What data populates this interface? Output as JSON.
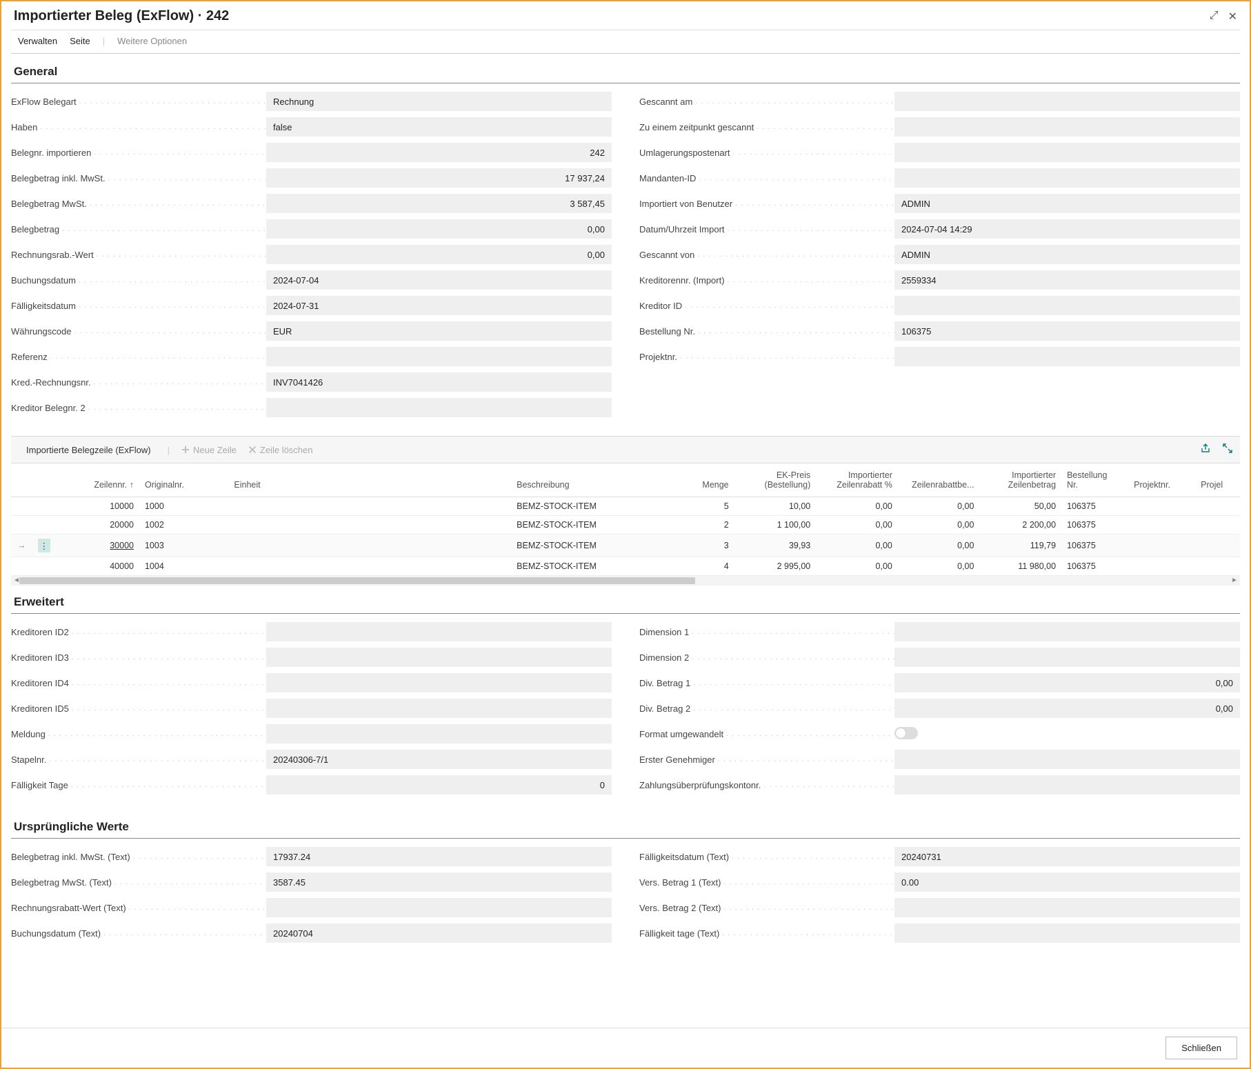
{
  "header": {
    "title": "Importierter Beleg (ExFlow) · 242"
  },
  "tabs": {
    "manage": "Verwalten",
    "page": "Seite",
    "more": "Weitere Optionen"
  },
  "sections": {
    "general": "General",
    "erweitert": "Erweitert",
    "urspruenglich": "Ursprüngliche Werte"
  },
  "general": {
    "left": [
      {
        "label": "ExFlow Belegart",
        "value": "Rechnung",
        "align": "left"
      },
      {
        "label": "Haben",
        "value": "false",
        "align": "left"
      },
      {
        "label": "Belegnr. importieren",
        "value": "242",
        "align": "right"
      },
      {
        "label": "Belegbetrag inkl. MwSt.",
        "value": "17 937,24",
        "align": "right"
      },
      {
        "label": "Belegbetrag MwSt.",
        "value": "3 587,45",
        "align": "right"
      },
      {
        "label": "Belegbetrag",
        "value": "0,00",
        "align": "right"
      },
      {
        "label": "Rechnungsrab.-Wert",
        "value": "0,00",
        "align": "right"
      },
      {
        "label": "Buchungsdatum",
        "value": "2024-07-04",
        "align": "left"
      },
      {
        "label": "Fälligkeitsdatum",
        "value": "2024-07-31",
        "align": "left"
      },
      {
        "label": "Währungscode",
        "value": "EUR",
        "align": "left"
      },
      {
        "label": "Referenz",
        "value": "",
        "align": "left"
      },
      {
        "label": "Kred.-Rechnungsnr.",
        "value": "INV7041426",
        "align": "left"
      },
      {
        "label": "Kreditor Belegnr. 2",
        "value": "",
        "align": "left"
      }
    ],
    "right": [
      {
        "label": "Gescannt am",
        "value": "",
        "align": "left"
      },
      {
        "label": "Zu einem zeitpunkt gescannt",
        "value": "",
        "align": "left"
      },
      {
        "label": "Umlagerungspostenart",
        "value": "",
        "align": "left"
      },
      {
        "label": "Mandanten-ID",
        "value": "",
        "align": "left"
      },
      {
        "label": "Importiert von Benutzer",
        "value": "ADMIN",
        "align": "left"
      },
      {
        "label": "Datum/Uhrzeit Import",
        "value": "2024-07-04 14:29",
        "align": "left"
      },
      {
        "label": "Gescannt von",
        "value": "ADMIN",
        "align": "left"
      },
      {
        "label": "Kreditorennr. (Import)",
        "value": "2559334",
        "align": "left"
      },
      {
        "label": "Kreditor ID",
        "value": "",
        "align": "left"
      },
      {
        "label": "Bestellung Nr.",
        "value": "106375",
        "align": "left"
      },
      {
        "label": "Projektnr.",
        "value": "",
        "align": "left"
      }
    ]
  },
  "subgrid": {
    "title": "Importierte Belegzeile (ExFlow)",
    "new_line": "Neue Zeile",
    "delete_line": "Zeile löschen",
    "columns": [
      {
        "key": "zeilennr",
        "label": "Zeilennr. ↑",
        "align": "r",
        "width": "110"
      },
      {
        "key": "originalnr",
        "label": "Originalnr.",
        "align": "",
        "width": "120"
      },
      {
        "key": "einheit",
        "label": "Einheit",
        "align": "",
        "width": "380"
      },
      {
        "key": "beschreibung",
        "label": "Beschreibung",
        "align": "",
        "width": "220"
      },
      {
        "key": "menge",
        "label": "Menge",
        "align": "r",
        "width": "80"
      },
      {
        "key": "ekpreis",
        "label": "EK-Preis (Bestellung)",
        "align": "r",
        "width": "110"
      },
      {
        "key": "zeilenrabattpct",
        "label": "Importierter Zeilenrabatt %",
        "align": "r",
        "width": "110"
      },
      {
        "key": "zeilenrabattbe",
        "label": "Zeilenrabattbe...",
        "align": "r",
        "width": "110"
      },
      {
        "key": "zeilenbetrag",
        "label": "Importierter Zeilenbetrag",
        "align": "r",
        "width": "110"
      },
      {
        "key": "bestellungnr",
        "label": "Bestellung Nr.",
        "align": "",
        "width": "90"
      },
      {
        "key": "projektnr",
        "label": "Projektnr.",
        "align": "",
        "width": "90"
      },
      {
        "key": "projel",
        "label": "Projel",
        "align": "",
        "width": "60"
      }
    ],
    "rows": [
      {
        "sel": false,
        "zeilennr": "10000",
        "originalnr": "1000",
        "einheit": "",
        "beschreibung": "BEMZ-STOCK-ITEM",
        "menge": "5",
        "ekpreis": "10,00",
        "zeilenrabattpct": "0,00",
        "zeilenrabattbe": "0,00",
        "zeilenbetrag": "50,00",
        "bestellungnr": "106375",
        "projektnr": "",
        "projel": ""
      },
      {
        "sel": false,
        "zeilennr": "20000",
        "originalnr": "1002",
        "einheit": "",
        "beschreibung": "BEMZ-STOCK-ITEM",
        "menge": "2",
        "ekpreis": "1 100,00",
        "zeilenrabattpct": "0,00",
        "zeilenrabattbe": "0,00",
        "zeilenbetrag": "2 200,00",
        "bestellungnr": "106375",
        "projektnr": "",
        "projel": ""
      },
      {
        "sel": true,
        "zeilennr": "30000",
        "originalnr": "1003",
        "einheit": "",
        "beschreibung": "BEMZ-STOCK-ITEM",
        "menge": "3",
        "ekpreis": "39,93",
        "zeilenrabattpct": "0,00",
        "zeilenrabattbe": "0,00",
        "zeilenbetrag": "119,79",
        "bestellungnr": "106375",
        "projektnr": "",
        "projel": ""
      },
      {
        "sel": false,
        "zeilennr": "40000",
        "originalnr": "1004",
        "einheit": "",
        "beschreibung": "BEMZ-STOCK-ITEM",
        "menge": "4",
        "ekpreis": "2 995,00",
        "zeilenrabattpct": "0,00",
        "zeilenrabattbe": "0,00",
        "zeilenbetrag": "11 980,00",
        "bestellungnr": "106375",
        "projektnr": "",
        "projel": ""
      }
    ]
  },
  "erweitert": {
    "left": [
      {
        "label": "Kreditoren ID2",
        "value": "",
        "align": "left"
      },
      {
        "label": "Kreditoren ID3",
        "value": "",
        "align": "left"
      },
      {
        "label": "Kreditoren ID4",
        "value": "",
        "align": "left"
      },
      {
        "label": "Kreditoren ID5",
        "value": "",
        "align": "left"
      },
      {
        "label": "Meldung",
        "value": "",
        "align": "left"
      },
      {
        "label": "Stapelnr.",
        "value": "20240306-7/1",
        "align": "left"
      },
      {
        "label": "Fälligkeit Tage",
        "value": "0",
        "align": "right"
      }
    ],
    "right": [
      {
        "label": "Dimension 1",
        "value": "",
        "align": "left"
      },
      {
        "label": "Dimension 2",
        "value": "",
        "align": "left"
      },
      {
        "label": "Div. Betrag 1",
        "value": "0,00",
        "align": "right"
      },
      {
        "label": "Div. Betrag 2",
        "value": "0,00",
        "align": "right"
      },
      {
        "label": "Format umgewandelt",
        "value": "__toggle__",
        "align": "left"
      },
      {
        "label": "Erster Genehmiger",
        "value": "",
        "align": "left"
      },
      {
        "label": "Zahlungsüberprüfungskontonr.",
        "value": "",
        "align": "left"
      }
    ]
  },
  "urspruenglich": {
    "left": [
      {
        "label": "Belegbetrag inkl. MwSt. (Text)",
        "value": "17937.24",
        "align": "left"
      },
      {
        "label": "Belegbetrag MwSt. (Text)",
        "value": "3587.45",
        "align": "left"
      },
      {
        "label": "Rechnungsrabatt-Wert (Text)",
        "value": "",
        "align": "left"
      },
      {
        "label": "Buchungsdatum (Text)",
        "value": "20240704",
        "align": "left"
      }
    ],
    "right": [
      {
        "label": "Fälligkeitsdatum (Text)",
        "value": "20240731",
        "align": "left"
      },
      {
        "label": "Vers. Betrag 1 (Text)",
        "value": "0.00",
        "align": "left"
      },
      {
        "label": "Vers. Betrag 2 (Text)",
        "value": "",
        "align": "left"
      },
      {
        "label": "Fälligkeit tage (Text)",
        "value": "",
        "align": "left"
      }
    ]
  },
  "footer": {
    "close": "Schließen"
  }
}
